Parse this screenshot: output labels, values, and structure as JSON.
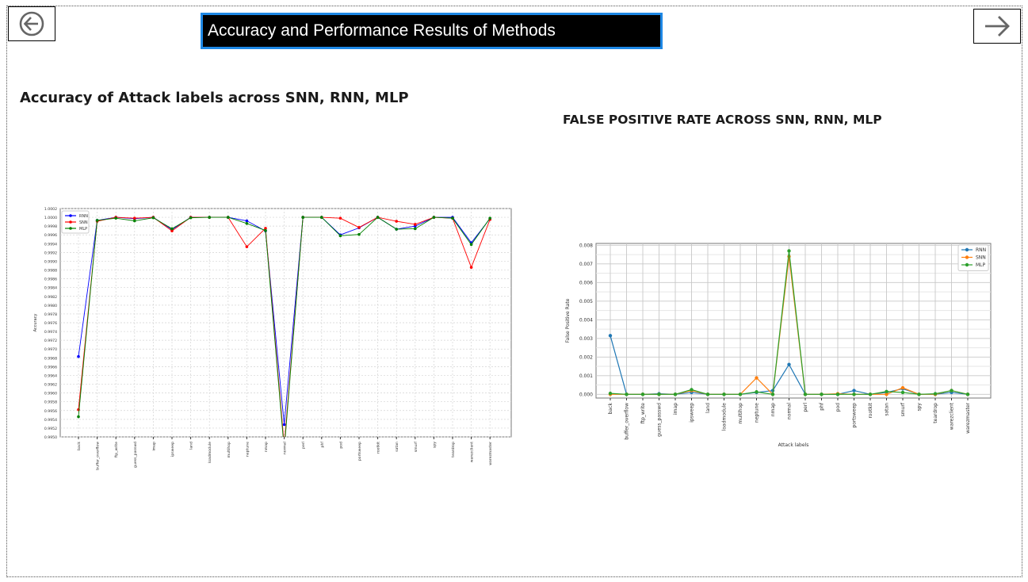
{
  "header": {
    "title": "Accuracy and Performance Results of Methods",
    "back_icon": "arrow-left-circle-icon",
    "next_icon": "arrow-right-icon"
  },
  "chart_data": [
    {
      "type": "line",
      "title": "Accuracy of Attack labels across SNN, RNN, MLP",
      "xlabel": "",
      "ylabel": "Accuracy",
      "ylim": [
        0.995,
        1.0002
      ],
      "yticks": [
        "0.9950",
        "0.9952",
        "0.9954",
        "0.9956",
        "0.9958",
        "0.9960",
        "0.9962",
        "0.9964",
        "0.9966",
        "0.9968",
        "0.9970",
        "0.9972",
        "0.9974",
        "0.9976",
        "0.9978",
        "0.9980",
        "0.9982",
        "0.9984",
        "0.9986",
        "0.9988",
        "0.9990",
        "0.9992",
        "0.9994",
        "0.9996",
        "0.9998",
        "1.0000",
        "1.0002"
      ],
      "grid": true,
      "legend_position": "upper left",
      "categories": [
        "back",
        "buffer_overflow",
        "ftp_write",
        "guess_passwd",
        "imap",
        "ipsweep",
        "land",
        "loadmodule",
        "multihop",
        "neptune",
        "nmap",
        "normal",
        "perl",
        "phf",
        "pod",
        "portsweep",
        "rootkit",
        "satan",
        "smurf",
        "spy",
        "teardrop",
        "warezclient",
        "warezmaster"
      ],
      "series": [
        {
          "name": "RNN",
          "color": "#0000ff",
          "values": [
            0.99683,
            0.99993,
            1.0,
            0.99997,
            1.0,
            0.99972,
            1.0,
            1.0,
            1.0,
            0.99992,
            0.99969,
            0.99528,
            1.0,
            1.0,
            0.9996,
            0.99976,
            1.0,
            0.99973,
            0.9998,
            1.0,
            1.0,
            0.99942,
            0.99997
          ]
        },
        {
          "name": "SNN",
          "color": "#ff0000",
          "values": [
            0.99562,
            0.99991,
            1.0,
            0.99998,
            1.0,
            0.99969,
            1.0,
            1.0,
            1.0,
            0.99933,
            0.99975,
            0.9948,
            1.0,
            1.0,
            0.99998,
            0.99977,
            1.0,
            0.99991,
            0.99984,
            1.0,
            0.99998,
            0.99886,
            0.99995
          ]
        },
        {
          "name": "MLP",
          "color": "#008000",
          "values": [
            0.99546,
            0.99993,
            0.99998,
            0.99992,
            0.99999,
            0.99974,
            0.99999,
            1.0,
            1.0,
            0.99986,
            0.9997,
            0.9947,
            1.0,
            1.0,
            0.99958,
            0.99961,
            1.0,
            0.99973,
            0.99974,
            1.0,
            0.99998,
            0.99938,
            0.99998
          ]
        }
      ]
    },
    {
      "type": "line",
      "title": "FALSE POSITIVE RATE ACROSS SNN, RNN, MLP",
      "xlabel": "Attack labels",
      "ylabel": "False Positive Rate",
      "ylim": [
        -0.0002,
        0.0081
      ],
      "yticks": [
        "0.000",
        "0.001",
        "0.002",
        "0.003",
        "0.004",
        "0.005",
        "0.006",
        "0.007",
        "0.008"
      ],
      "grid": true,
      "legend_position": "upper right",
      "categories": [
        "back",
        "buffer_overflow",
        "ftp_write",
        "guess_passwd",
        "imap",
        "ipsweep",
        "land",
        "loadmodule",
        "multihop",
        "neptune",
        "nmap",
        "normal",
        "perl",
        "phf",
        "pod",
        "portsweep",
        "rootkit",
        "satan",
        "smurf",
        "spy",
        "teardrop",
        "warezclient",
        "warezmaster"
      ],
      "series": [
        {
          "name": "RNN",
          "color": "#1f77b4",
          "values": [
            0.00315,
            0.0,
            0.0,
            3e-05,
            0.0,
            0.0001,
            0.0,
            0.0,
            0.0,
            0.0001,
            0.0002,
            0.0016,
            0.0,
            0.0,
            0.0,
            0.0002,
            0.0,
            0.0001,
            0.0003,
            0.0,
            0.0,
            0.0001,
            0.0
          ]
        },
        {
          "name": "SNN",
          "color": "#ff7f0e",
          "values": [
            0.0,
            0.0,
            0.0,
            0.0,
            0.0,
            0.0002,
            0.0,
            0.0,
            0.0,
            0.00088,
            0.0,
            0.0074,
            0.0,
            0.0,
            3e-05,
            0.0,
            0.0,
            0.0,
            0.00035,
            0.0,
            0.0,
            0.0002,
            0.0
          ]
        },
        {
          "name": "MLP",
          "color": "#2ca02c",
          "values": [
            5e-05,
            0.0,
            0.0,
            0.0,
            0.0,
            0.00025,
            0.0,
            0.0,
            0.0,
            0.00013,
            0.0,
            0.0077,
            0.0,
            0.0,
            0.0,
            0.0,
            0.0,
            0.00015,
            0.0001,
            0.0,
            3e-05,
            0.0002,
            0.0
          ]
        }
      ]
    }
  ]
}
